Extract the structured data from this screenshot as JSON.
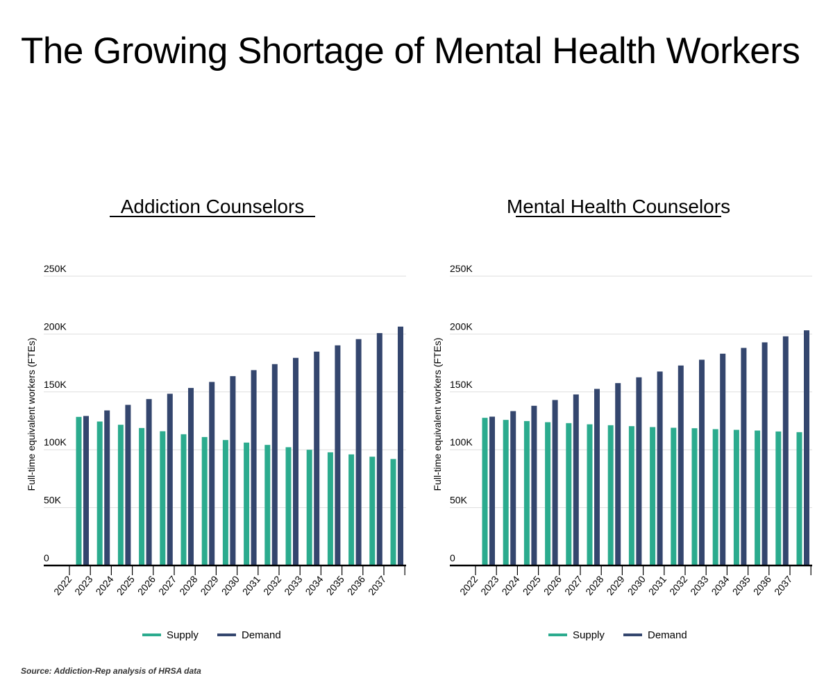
{
  "title": "The Growing Shortage of Mental Health Workers",
  "source": "Source: Addiction-Rep analysis of HRSA data",
  "colors": {
    "supply": "#2bab8e",
    "demand": "#34466e",
    "grid": "#dddddd"
  },
  "chart_data": [
    {
      "type": "bar",
      "title": "Addiction Counselors",
      "xlabel": "",
      "ylabel": "Full-time equivalent workers (FTEs)",
      "ylim": [
        0,
        250000
      ],
      "yticks": [
        "0",
        "50K",
        "100K",
        "150K",
        "200K",
        "250K"
      ],
      "grid": true,
      "legend": "bottom",
      "categories": [
        "2022",
        "2023",
        "2024",
        "2025",
        "2026",
        "2027",
        "2028",
        "2029",
        "2030",
        "2031",
        "2032",
        "2033",
        "2034",
        "2035",
        "2036",
        "2037"
      ],
      "series": [
        {
          "name": "Supply",
          "values": [
            128400,
            124400,
            121600,
            118800,
            116000,
            113400,
            111000,
            108400,
            106200,
            104200,
            102200,
            100000,
            97800,
            96000,
            94000,
            92000
          ]
        },
        {
          "name": "Demand",
          "values": [
            129200,
            134000,
            138800,
            143800,
            148400,
            153400,
            158600,
            163600,
            168800,
            174000,
            179400,
            184800,
            190200,
            195600,
            200800,
            206400
          ]
        }
      ]
    },
    {
      "type": "bar",
      "title": "Mental Health Counselors",
      "xlabel": "",
      "ylabel": "Full-time equivalent workers (FTEs)",
      "ylim": [
        0,
        250000
      ],
      "yticks": [
        "0",
        "50K",
        "100K",
        "150K",
        "200K",
        "250K"
      ],
      "grid": true,
      "legend": "bottom",
      "categories": [
        "2022",
        "2023",
        "2024",
        "2025",
        "2026",
        "2027",
        "2028",
        "2029",
        "2030",
        "2031",
        "2032",
        "2033",
        "2034",
        "2035",
        "2036",
        "2037"
      ],
      "series": [
        {
          "name": "Supply",
          "values": [
            127600,
            125800,
            124800,
            123800,
            123000,
            122000,
            121200,
            120400,
            119600,
            119000,
            118600,
            117800,
            117200,
            116600,
            115800,
            115200
          ]
        },
        {
          "name": "Demand",
          "values": [
            128600,
            133400,
            138000,
            143000,
            147800,
            152600,
            157600,
            162600,
            167600,
            172800,
            177800,
            183000,
            188000,
            192800,
            198000,
            203200
          ]
        }
      ]
    }
  ]
}
